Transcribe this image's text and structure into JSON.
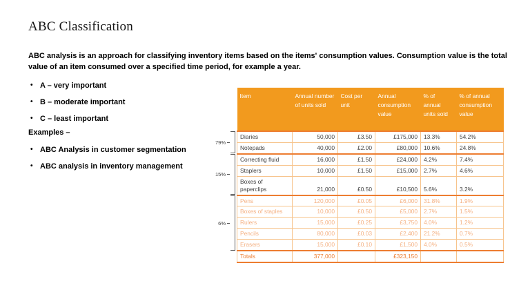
{
  "slide": {
    "title": "ABC Classification",
    "intro": "ABC analysis is an approach for classifying inventory items based on the items' consumption values. Consumption value is the total value of an item consumed over a specified time period, for example a year.",
    "bullets": [
      "A – very important",
      "B – moderate important",
      "C – least important"
    ],
    "examples_label": "Examples –",
    "example_bullets": [
      "ABC Analysis in customer segmentation",
      "ABC analysis in inventory management"
    ]
  },
  "table": {
    "headers": [
      "Item",
      "Annual number of units sold",
      "Cost per unit",
      "Annual consumption value",
      "% of annual units sold",
      "% of annual consumption value"
    ],
    "groups": [
      {
        "bracket_label": "79%",
        "rows": [
          [
            "Diaries",
            "50,000",
            "£3.50",
            "£175,000",
            "13.3%",
            "54.2%"
          ],
          [
            "Notepads",
            "40,000",
            "£2.00",
            "£80,000",
            "10.6%",
            "24.8%"
          ]
        ]
      },
      {
        "bracket_label": "15%",
        "rows": [
          [
            "Correcting fluid",
            "16,000",
            "£1.50",
            "£24,000",
            "4.2%",
            "7.4%"
          ],
          [
            "Staplers",
            "10,000",
            "£1.50",
            "£15,000",
            "2.7%",
            "4.6%"
          ],
          [
            "Boxes of paperclips",
            "21,000",
            "£0.50",
            "£10,500",
            "5.6%",
            "3.2%"
          ]
        ]
      },
      {
        "bracket_label": "6%",
        "rows": [
          [
            "Pens",
            "120,000",
            "£0.05",
            "£6,000",
            "31.8%",
            "1.9%"
          ],
          [
            "Boxes of staples",
            "10,000",
            "£0.50",
            "£5,000",
            "2.7%",
            "1.5%"
          ],
          [
            "Rulers",
            "15,000",
            "£0.25",
            "£3,750",
            "4.0%",
            "1.2%"
          ],
          [
            "Pencils",
            "80,000",
            "£0.03",
            "£2,400",
            "21.2%",
            "0.7%"
          ],
          [
            "Erasers",
            "15,000",
            "£0.10",
            "£1,500",
            "4.0%",
            "0.5%"
          ]
        ]
      }
    ],
    "totals": [
      "Totals",
      "377,000",
      "",
      "£323,150",
      "",
      ""
    ]
  },
  "colors": {
    "header_bg": "#F29A1E",
    "border_light": "#F7C48C",
    "group_separator": "#ED7D31",
    "tier_c_text": "#F4B183",
    "totals_text": "#ED7D31"
  }
}
